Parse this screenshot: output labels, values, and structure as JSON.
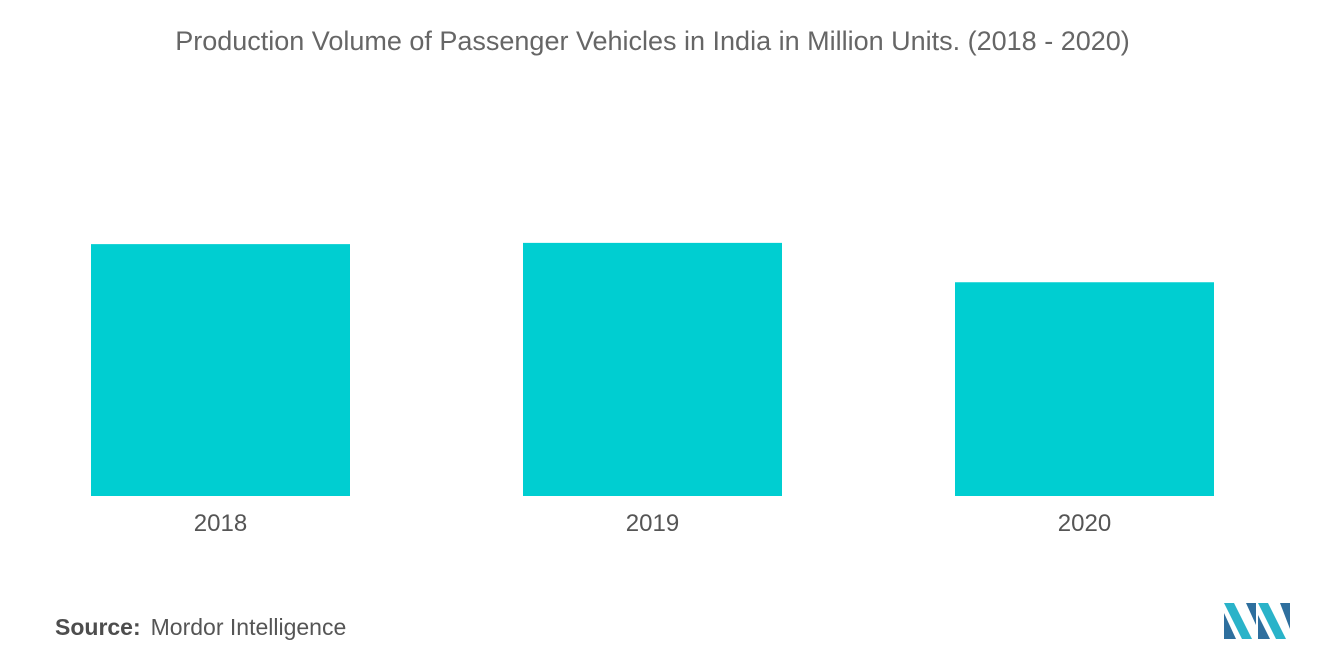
{
  "chart_data": {
    "type": "bar",
    "title": "Production Volume of Passenger Vehicles in India in Million Units. (2018 - 2020)",
    "categories": [
      "2018",
      "2019",
      "2020"
    ],
    "values": [
      4.03,
      4.05,
      3.42
    ],
    "xlabel": "",
    "ylabel": "",
    "ylim": [
      0,
      8
    ],
    "grid": false,
    "legend": "none",
    "bar_color": "#00ced1"
  },
  "source": {
    "label": "Source:",
    "value": "Mordor Intelligence"
  },
  "colors": {
    "title": "#666666",
    "axis_text": "#555555",
    "logo_dark": "#2e6f9e",
    "logo_light": "#2ab3c9"
  },
  "logo": {
    "icon": "mordor-intelligence-logo-icon"
  }
}
